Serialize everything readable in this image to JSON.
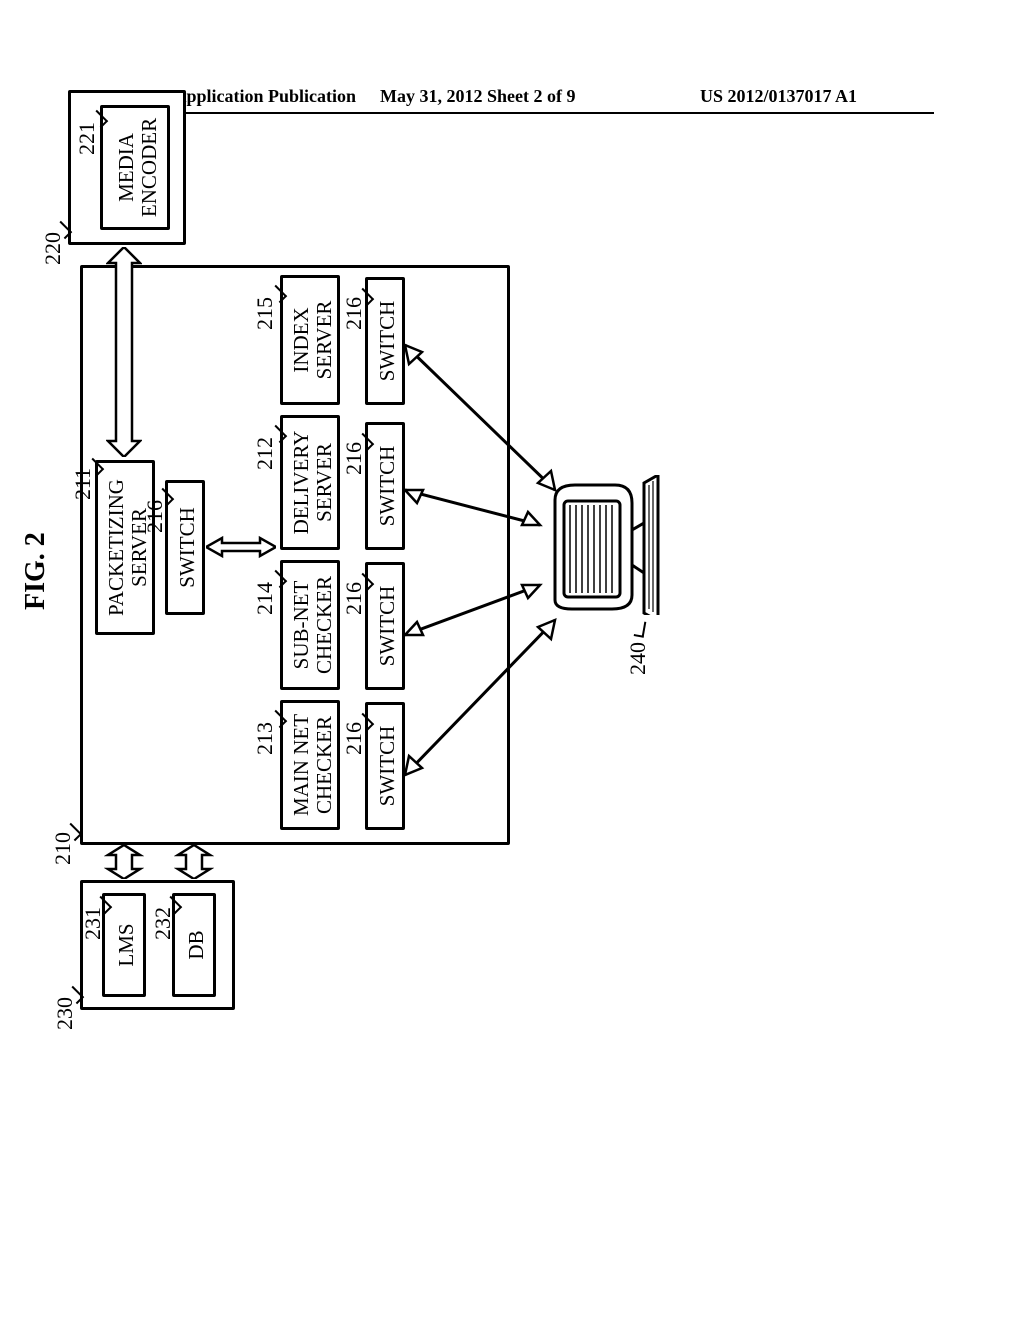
{
  "header": {
    "left": "Patent Application Publication",
    "mid": "May 31, 2012  Sheet 2 of 9",
    "right": "US 2012/0137017 A1"
  },
  "figure_label": "FIG. 2",
  "refnums": {
    "r210": "210",
    "r211": "211",
    "r212": "212",
    "r213": "213",
    "r214": "214",
    "r215": "215",
    "r216a": "216",
    "r216b": "216",
    "r216c": "216",
    "r216d": "216",
    "r216e": "216",
    "r220": "220",
    "r221": "221",
    "r230": "230",
    "r231": "231",
    "r232": "232",
    "r240": "240"
  },
  "boxes": {
    "packetizing": "PACKETIZING\nSERVER",
    "delivery": "DELIVERY\nSERVER",
    "main_net": "MAIN NET\nCHECKER",
    "sub_net": "SUB-NET\nCHECKER",
    "index": "INDEX\nSERVER",
    "switch": "SWITCH",
    "media_encoder": "MEDIA\nENCODER",
    "lms": "LMS",
    "db": "DB"
  },
  "style": {
    "stroke": "#000000",
    "bg": "#ffffff",
    "border_width": 3,
    "font_size_box": 21,
    "font_size_ref": 22
  }
}
